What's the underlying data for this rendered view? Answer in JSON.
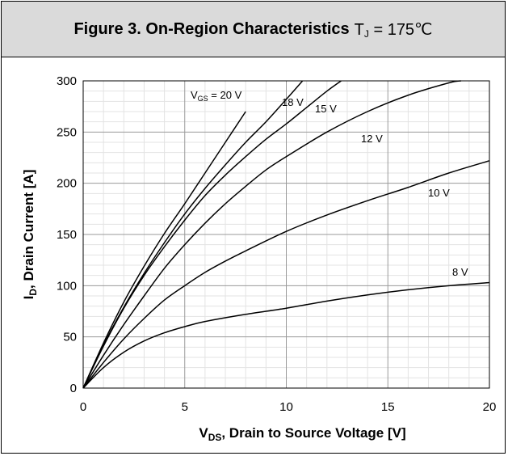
{
  "title": {
    "main": "Figure 3. On-Region Characteristics",
    "tj_symbol": "T",
    "tj_sub": "J",
    "tj_value": "= 175℃"
  },
  "chart_data": {
    "type": "line",
    "title": "Figure 3. On-Region Characteristics TJ = 175℃",
    "xlabel": "VDS, Drain to Source Voltage [V]",
    "ylabel": "ID, Drain Current [A]",
    "xlim": [
      0,
      20
    ],
    "ylim": [
      0,
      300
    ],
    "xticks": [
      0,
      5,
      10,
      15,
      20
    ],
    "yticks": [
      0,
      50,
      100,
      150,
      200,
      250,
      300
    ],
    "grid": true,
    "minor_grid": true,
    "series": [
      {
        "name": "VGS = 20 V",
        "label_main": "V",
        "label_sub": "GS",
        "label_rest": " = 20 V",
        "x": [
          0,
          1,
          2,
          3,
          4,
          5,
          6,
          7,
          8
        ],
        "y": [
          0,
          44,
          84,
          119,
          151,
          180,
          210,
          240,
          270
        ]
      },
      {
        "name": "18 V",
        "label_main": "18 V",
        "label_sub": "",
        "label_rest": "",
        "x": [
          0,
          1,
          2,
          3,
          4,
          5,
          6,
          7,
          8,
          9,
          10,
          10.8
        ],
        "y": [
          0,
          42,
          79,
          112,
          142,
          170,
          195,
          218,
          240,
          260,
          282,
          300
        ]
      },
      {
        "name": "15 V",
        "label_main": "15 V",
        "label_sub": "",
        "label_rest": "",
        "x": [
          0,
          1,
          2,
          3,
          4,
          5,
          6,
          7,
          8,
          9,
          10,
          11,
          12,
          12.7
        ],
        "y": [
          0,
          41,
          78,
          110,
          138,
          164,
          188,
          208,
          226,
          243,
          258,
          274,
          290,
          300
        ]
      },
      {
        "name": "12 V",
        "label_main": "12 V",
        "label_sub": "",
        "label_rest": "",
        "x": [
          0,
          1,
          2,
          3,
          4,
          5,
          6,
          7,
          8,
          9,
          10,
          12,
          14,
          16,
          18,
          18.6
        ],
        "y": [
          0,
          32,
          62,
          90,
          117,
          140,
          161,
          180,
          197,
          213,
          226,
          250,
          270,
          286,
          298,
          300
        ]
      },
      {
        "name": "10 V",
        "label_main": "10 V",
        "label_sub": "",
        "label_rest": "",
        "x": [
          0,
          1,
          2,
          3,
          4,
          5,
          6,
          7,
          8,
          10,
          12,
          14,
          16,
          18,
          20
        ],
        "y": [
          0,
          25,
          48,
          68,
          86,
          100,
          113,
          124,
          134,
          153,
          169,
          183,
          196,
          210,
          222
        ]
      },
      {
        "name": "8 V",
        "label_main": "8 V",
        "label_sub": "",
        "label_rest": "",
        "x": [
          0,
          1,
          2,
          3,
          4,
          5,
          6,
          8,
          10,
          12,
          14,
          16,
          18,
          20
        ],
        "y": [
          0,
          20,
          35,
          46,
          54,
          60,
          65,
          72,
          78,
          85,
          91,
          96,
          100,
          103
        ]
      }
    ]
  }
}
